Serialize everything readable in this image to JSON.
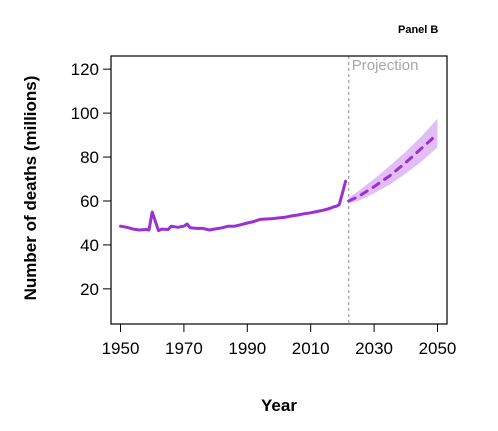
{
  "panel_label": "Panel B",
  "chart_data": {
    "type": "line",
    "title": "",
    "xlabel": "Year",
    "ylabel": "Number of deaths (millions)",
    "xlim": [
      1947,
      2053
    ],
    "ylim": [
      4,
      126
    ],
    "x_ticks": [
      1950,
      1970,
      1990,
      2010,
      2030,
      2050
    ],
    "y_ticks": [
      20,
      40,
      60,
      80,
      100,
      120
    ],
    "grid": false,
    "legend": "none",
    "projection_start": 2022,
    "annotations": [
      {
        "text": "Projection",
        "x": 2022,
        "position": "top-right of divider"
      }
    ],
    "series": [
      {
        "style": "solid",
        "color": "#9b30d6",
        "x": [
          1950,
          1952,
          1954,
          1956,
          1958,
          1959,
          1960,
          1962,
          1963,
          1965,
          1966,
          1968,
          1970,
          1971,
          1972,
          1974,
          1976,
          1978,
          1980,
          1982,
          1984,
          1986,
          1988,
          1990,
          1992,
          1994,
          1996,
          1998,
          2000,
          2002,
          2004,
          2006,
          2008,
          2010,
          2012,
          2014,
          2016,
          2017,
          2018,
          2019,
          2020,
          2021
        ],
        "y": [
          48.5,
          48,
          47.2,
          46.8,
          47,
          46.8,
          55,
          46.5,
          47.2,
          47,
          48.5,
          48,
          48.5,
          49.5,
          47.8,
          47.5,
          47.5,
          46.8,
          47.3,
          47.8,
          48.5,
          48.5,
          49.2,
          50,
          50.6,
          51.6,
          51.8,
          52.0,
          52.3,
          52.6,
          53.2,
          53.6,
          54.2,
          54.6,
          55.2,
          55.8,
          56.6,
          57.2,
          57.6,
          58.3,
          63.5,
          69
        ]
      },
      {
        "style": "dashed",
        "color": "#9b30d6",
        "x": [
          2022,
          2025,
          2030,
          2035,
          2040,
          2045,
          2050
        ],
        "y": [
          60,
          62,
          66.5,
          71.5,
          77.5,
          84,
          90.5
        ],
        "lower": [
          59,
          60,
          63.5,
          67.5,
          72.5,
          78,
          84.5
        ],
        "upper": [
          61.5,
          64.5,
          70,
          76,
          82.5,
          89.5,
          97.5
        ],
        "band_color": "#d8a8f2"
      }
    ]
  }
}
